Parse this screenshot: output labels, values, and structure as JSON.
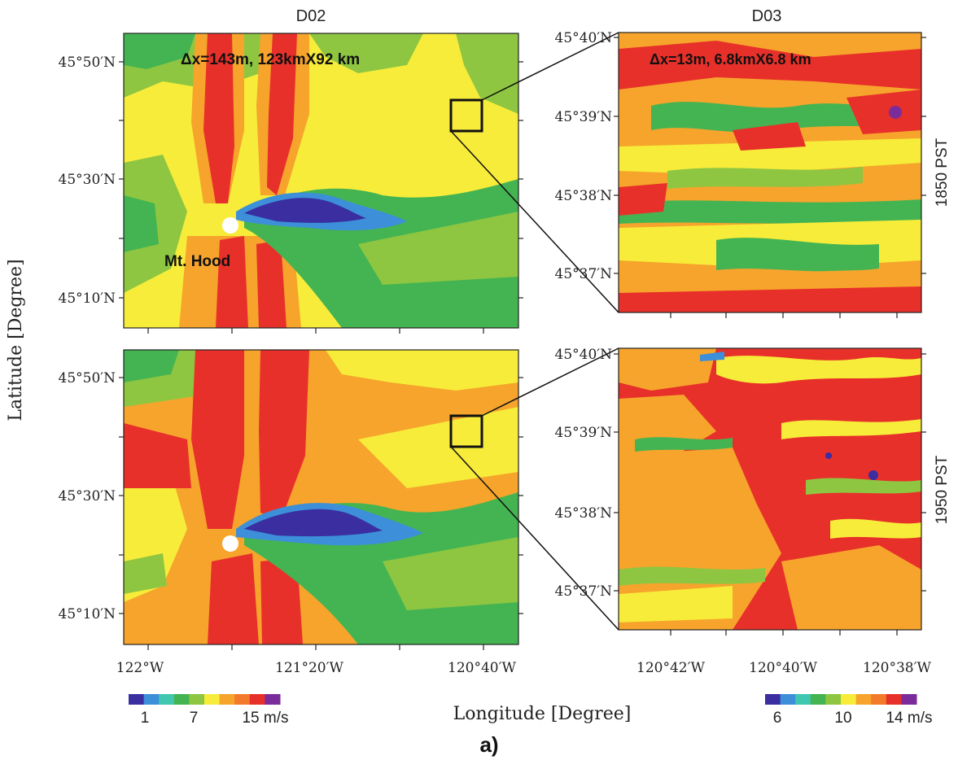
{
  "figure_label": "a)",
  "colors": {
    "scale": [
      "#3a2ea0",
      "#3c8fd8",
      "#3fc7b0",
      "#44b452",
      "#8ec641",
      "#f7ec3a",
      "#f6a42c",
      "#f27a2a",
      "#e8302a",
      "#7a2d9a"
    ],
    "frame": "#222222",
    "mountain": "#ffffff"
  },
  "columns": {
    "left_title": "D02",
    "right_title": "D03"
  },
  "axes": {
    "y_label": "Latitude [Degree]",
    "x_label": "Longitude [Degree]"
  },
  "rows": {
    "top_time": "1850 PST",
    "bottom_time": "1950 PST"
  },
  "d02": {
    "annotation": "Δx=143m, 123kmX92 km",
    "landmark": "Mt. Hood",
    "y_ticks": [
      "45°50′N",
      "45°30′N",
      "45°10′N"
    ],
    "x_ticks": [
      "122°W",
      "121°20′W",
      "120°40′W"
    ]
  },
  "d03": {
    "annotation": "Δx=13m, 6.8kmX6.8 km",
    "y_ticks": [
      "45°40′N",
      "45°39′N",
      "45°38′N",
      "45°37′N"
    ],
    "x_ticks": [
      "120°42′W",
      "120°40′W",
      "120°38′W"
    ]
  },
  "colorbar_left": {
    "labels": [
      "1",
      "7",
      "15 m/s"
    ]
  },
  "colorbar_right": {
    "labels": [
      "6",
      "10",
      "14 m/s"
    ]
  }
}
